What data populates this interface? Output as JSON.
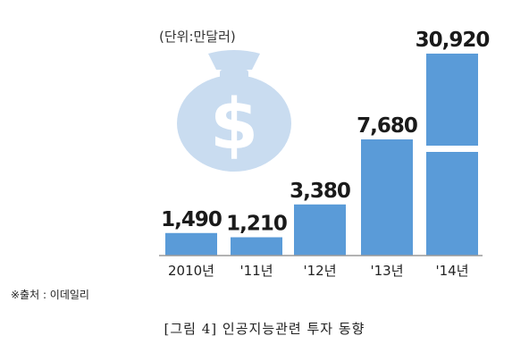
{
  "chart_data": {
    "type": "bar",
    "unit_label": "(단위:만달러)",
    "categories": [
      "2010년",
      "'11년",
      "'12년",
      "'13년",
      "'14년"
    ],
    "values": [
      1490,
      1210,
      3380,
      7680,
      30920
    ],
    "value_labels": [
      "1,490",
      "1,210",
      "3,380",
      "7,680",
      "30,920"
    ],
    "bar_color": "#5a9bd8",
    "axis_color": "#9a9a9a",
    "decoration_color": "#c9dcf0",
    "decoration_icon": "money-bag-dollar-icon",
    "broken_axis_last_bar": true,
    "grid": false,
    "legend": "none"
  },
  "source_text": "※출처 : 이데일리",
  "caption": "[그림 4] 인공지능관련 투자 동향"
}
